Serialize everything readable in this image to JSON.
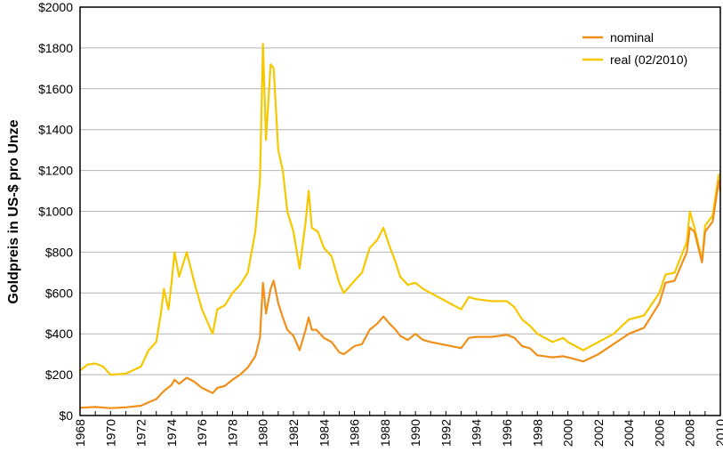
{
  "chart_data": {
    "type": "line",
    "title": "",
    "xlabel": "",
    "ylabel": "Goldpreis in US-$ pro Unze",
    "xlim": [
      1968,
      2010
    ],
    "ylim": [
      0,
      2000
    ],
    "grid": true,
    "legend_position": "top-right",
    "y_ticks": [
      "$0",
      "$200",
      "$400",
      "$600",
      "$800",
      "$1000",
      "$1200",
      "$1400",
      "$1600",
      "$1800",
      "$2000"
    ],
    "x_ticks": [
      "1968",
      "1970",
      "1972",
      "1974",
      "1976",
      "1978",
      "1980",
      "1982",
      "1984",
      "1986",
      "1988",
      "1990",
      "1992",
      "1994",
      "1996",
      "1998",
      "2000",
      "2002",
      "2004",
      "2006",
      "2008",
      "2010"
    ],
    "colors": {
      "nominal": "#f0901a",
      "real": "#f6c800",
      "grid": "#b4b4b4"
    },
    "series": [
      {
        "name": "nominal",
        "x": [
          1968,
          1969,
          1970,
          1971,
          1972,
          1972.5,
          1973,
          1973.5,
          1974,
          1974.2,
          1974.5,
          1975,
          1975.5,
          1976,
          1976.7,
          1977,
          1977.5,
          1978,
          1978.5,
          1979,
          1979.5,
          1979.8,
          1980.0,
          1980.2,
          1980.5,
          1980.7,
          1981,
          1981.3,
          1981.6,
          1982,
          1982.4,
          1982.8,
          1983,
          1983.2,
          1983.5,
          1984,
          1984.5,
          1985,
          1985.3,
          1986,
          1986.5,
          1987,
          1987.5,
          1987.9,
          1988.3,
          1988.7,
          1989,
          1989.5,
          1990,
          1990.5,
          1991,
          1992,
          1993,
          1993.5,
          1994,
          1995,
          1996,
          1996.5,
          1997,
          1997.5,
          1998,
          1999,
          1999.7,
          2000,
          2001,
          2002,
          2003,
          2004,
          2005,
          2006,
          2006.4,
          2007,
          2007.8,
          2008,
          2008.3,
          2008.8,
          2009,
          2009.5,
          2009.9,
          2010
        ],
        "values": [
          38,
          42,
          36,
          40,
          48,
          65,
          80,
          120,
          150,
          175,
          155,
          185,
          165,
          135,
          110,
          135,
          145,
          175,
          200,
          235,
          290,
          380,
          650,
          500,
          620,
          660,
          550,
          480,
          420,
          390,
          320,
          420,
          480,
          420,
          420,
          380,
          360,
          310,
          300,
          340,
          350,
          420,
          450,
          485,
          450,
          420,
          390,
          370,
          400,
          370,
          360,
          345,
          330,
          380,
          385,
          385,
          395,
          380,
          340,
          330,
          295,
          285,
          290,
          285,
          265,
          300,
          350,
          400,
          430,
          550,
          650,
          660,
          800,
          920,
          900,
          750,
          900,
          950,
          1150,
          1100
        ]
      },
      {
        "name": "real (02/2010)",
        "x": [
          1968,
          1968.5,
          1969,
          1969.5,
          1970,
          1971,
          1972,
          1972.5,
          1973,
          1973.3,
          1973.5,
          1973.8,
          1974,
          1974.2,
          1974.5,
          1975,
          1975.5,
          1976,
          1976.7,
          1977,
          1977.5,
          1978,
          1978.5,
          1979,
          1979.5,
          1979.8,
          1980.0,
          1980.2,
          1980.5,
          1980.7,
          1981,
          1981.3,
          1981.6,
          1982,
          1982.4,
          1982.8,
          1983,
          1983.2,
          1983.6,
          1984,
          1984.5,
          1985,
          1985.3,
          1986,
          1986.5,
          1987,
          1987.5,
          1987.9,
          1988.3,
          1988.7,
          1989,
          1989.5,
          1990,
          1990.5,
          1991,
          1992,
          1993,
          1993.5,
          1994,
          1995,
          1996,
          1996.5,
          1997,
          1997.5,
          1998,
          1999,
          1999.7,
          2000,
          2001,
          2002,
          2003,
          2004,
          2005,
          2006,
          2006.4,
          2007,
          2007.8,
          2008,
          2008.3,
          2008.8,
          2009,
          2009.5,
          2009.9,
          2010
        ],
        "values": [
          220,
          250,
          255,
          240,
          200,
          205,
          240,
          320,
          360,
          500,
          620,
          520,
          650,
          800,
          680,
          800,
          650,
          520,
          400,
          520,
          540,
          600,
          640,
          700,
          900,
          1150,
          1820,
          1350,
          1720,
          1700,
          1300,
          1200,
          1000,
          900,
          720,
          950,
          1100,
          920,
          900,
          820,
          780,
          650,
          600,
          660,
          700,
          820,
          860,
          920,
          830,
          750,
          680,
          640,
          650,
          620,
          600,
          560,
          520,
          580,
          570,
          560,
          560,
          530,
          470,
          440,
          400,
          360,
          380,
          360,
          320,
          360,
          400,
          470,
          490,
          600,
          690,
          700,
          850,
          1000,
          920,
          760,
          930,
          980,
          1180,
          1100
        ]
      }
    ]
  }
}
